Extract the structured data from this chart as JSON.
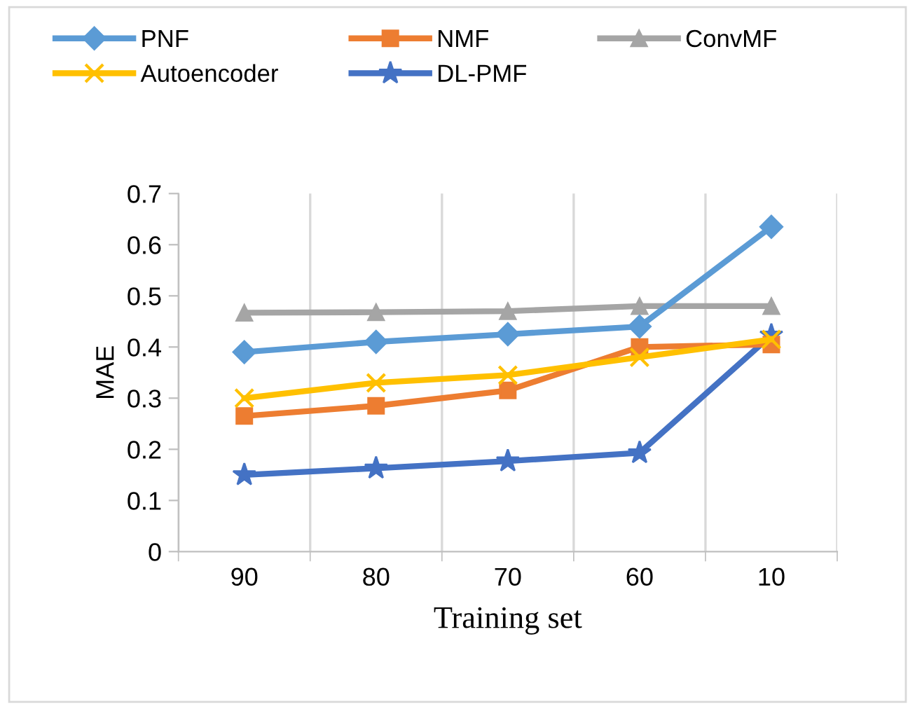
{
  "chart_data": {
    "type": "line",
    "xlabel": "Training set",
    "ylabel": "MAE",
    "categories": [
      "90",
      "80",
      "70",
      "60",
      "10"
    ],
    "series": [
      {
        "name": "PNF",
        "color": "#5b9bd5",
        "marker": "diamond",
        "values": [
          0.39,
          0.41,
          0.425,
          0.44,
          0.635
        ]
      },
      {
        "name": "NMF",
        "color": "#ed7d31",
        "marker": "square",
        "values": [
          0.265,
          0.285,
          0.315,
          0.4,
          0.405
        ]
      },
      {
        "name": "ConvMF",
        "color": "#a5a5a5",
        "marker": "triangle",
        "values": [
          0.467,
          0.468,
          0.47,
          0.48,
          0.48
        ]
      },
      {
        "name": "Autoencoder",
        "color": "#ffc000",
        "marker": "cross",
        "values": [
          0.3,
          0.33,
          0.345,
          0.38,
          0.415
        ]
      },
      {
        "name": "DL-PMF",
        "color": "#4472c4",
        "marker": "star",
        "values": [
          0.15,
          0.163,
          0.177,
          0.193,
          0.423
        ]
      }
    ],
    "ylim": [
      0,
      0.7
    ],
    "yticks": [
      0,
      0.1,
      0.2,
      0.3,
      0.4,
      0.5,
      0.6,
      0.7
    ],
    "grid": "x",
    "legend": "top",
    "line_style": "solid"
  }
}
